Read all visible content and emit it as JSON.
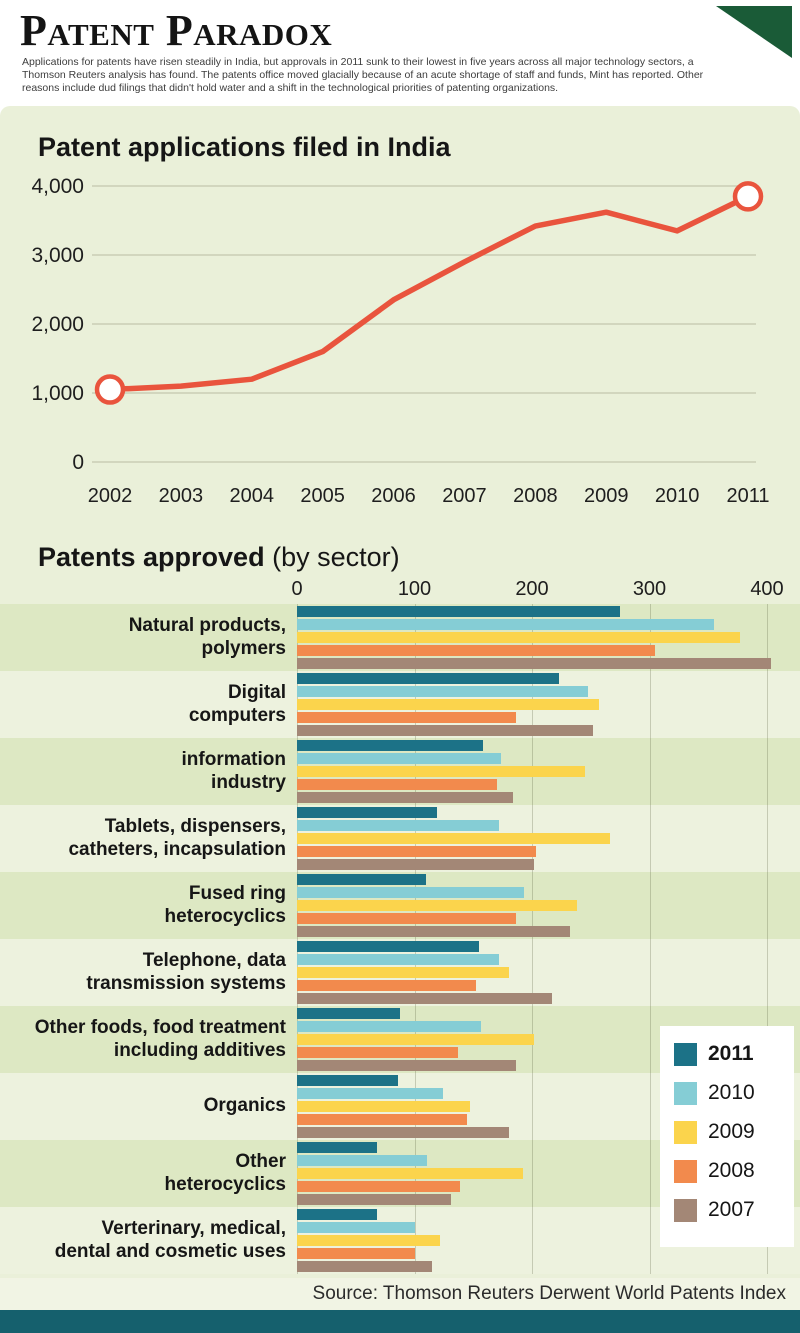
{
  "page": {
    "title": "Patent Paradox",
    "description": "Applications for patents have risen steadily in India, but approvals in 2011 sunk to their lowest in five years across all major technology sectors, a Thomson Reuters analysis has found. The patents office moved glacially because of an acute shortage of staff and funds, Mint has reported. Other reasons include dud filings that didn't hold water and a shift in the technological priorities of patenting organizations.",
    "source": "Source: Thomson Reuters Derwent World Patents Index"
  },
  "colors": {
    "background": "#eaf0d9",
    "row_dark": "#dde8c3",
    "row_light": "#edf2de",
    "line": "#e9543d",
    "grid": "#c3c6ae",
    "footer": "#15606d",
    "corner_fold": "#1a5b37",
    "legend_background": "#ffffff"
  },
  "chart_data": [
    {
      "type": "line",
      "title": "Patent applications filed in India",
      "x": [
        "2002",
        "2003",
        "2004",
        "2005",
        "2006",
        "2007",
        "2008",
        "2009",
        "2010",
        "2011"
      ],
      "values": [
        1050,
        1100,
        1200,
        1600,
        2350,
        2900,
        3420,
        3620,
        3350,
        3850
      ],
      "ylim": [
        0,
        4000
      ],
      "yticks": [
        0,
        1000,
        2000,
        3000,
        4000
      ],
      "ytick_labels": [
        "0",
        "1,000",
        "2,000",
        "3,000",
        "4,000"
      ],
      "marker_indices": [
        0,
        9
      ],
      "line_color": "#e9543d",
      "grid": true,
      "legend_position": "none"
    },
    {
      "type": "bar",
      "orientation": "horizontal",
      "title": "Patents approved",
      "subtitle": "(by sector)",
      "xlim": [
        0,
        428
      ],
      "xticks": [
        0,
        100,
        200,
        300,
        400
      ],
      "xtick_labels": [
        "0",
        "100",
        "200",
        "300",
        "400"
      ],
      "categories": [
        "Natural products,\npolymers",
        "Digital\ncomputers",
        "information\nindustry",
        "Tablets, dispensers,\ncatheters, incapsulation",
        "Fused ring\nheterocyclics",
        "Telephone, data\ntransmission systems",
        "Other foods, food treatment\nincluding additives",
        "Organics",
        "Other\nheterocyclics",
        "Verterinary, medical,\ndental and cosmetic uses"
      ],
      "series": [
        {
          "name": "2011",
          "color": "#1c7287",
          "values": [
            275,
            223,
            158,
            119,
            110,
            155,
            88,
            86,
            68,
            68
          ]
        },
        {
          "name": "2010",
          "color": "#85cdd5",
          "values": [
            355,
            248,
            174,
            172,
            193,
            172,
            157,
            124,
            111,
            100
          ]
        },
        {
          "name": "2009",
          "color": "#fbd44c",
          "values": [
            377,
            257,
            245,
            266,
            238,
            180,
            202,
            147,
            192,
            122
          ]
        },
        {
          "name": "2008",
          "color": "#f28a4d",
          "values": [
            305,
            186,
            170,
            203,
            186,
            152,
            137,
            145,
            139,
            100
          ]
        },
        {
          "name": "2007",
          "color": "#a38776",
          "values": [
            403,
            252,
            184,
            202,
            232,
            217,
            186,
            180,
            131,
            115
          ]
        }
      ],
      "legend_position": "right-overlay",
      "grid": true
    }
  ]
}
